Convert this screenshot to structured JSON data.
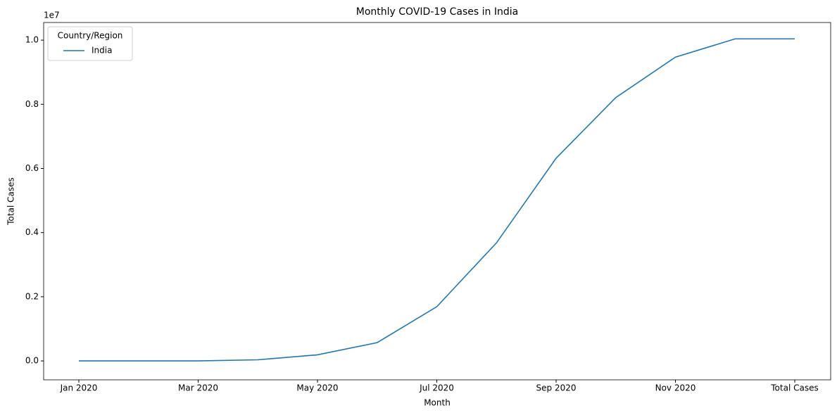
{
  "chart_data": {
    "type": "line",
    "title": "Monthly COVID-19 Cases in India",
    "x_label": "Month",
    "y_label": "Total Cases",
    "y_offset_label": "1e7",
    "categories": [
      "Jan 2020",
      null,
      "Mar 2020",
      null,
      "May 2020",
      null,
      "Jul 2020",
      null,
      "Sep 2020",
      null,
      "Nov 2020",
      null,
      "Total Cases"
    ],
    "series": [
      {
        "name": "India",
        "color": "#1f77b4",
        "values": [
          0,
          0,
          0.0001,
          0.0035,
          0.019,
          0.057,
          0.169,
          0.368,
          0.632,
          0.821,
          0.947,
          1.004,
          1.004
        ]
      }
    ],
    "ylim": [
      -0.059,
      1.055
    ],
    "yticks": [
      {
        "value": 0,
        "label": "0.0"
      },
      0.2,
      0.4,
      0.6,
      0.8,
      {
        "value": 1,
        "label": "1.0"
      }
    ],
    "legend_title": "Country/Region",
    "legend_position": "upper-left",
    "grid": false
  }
}
